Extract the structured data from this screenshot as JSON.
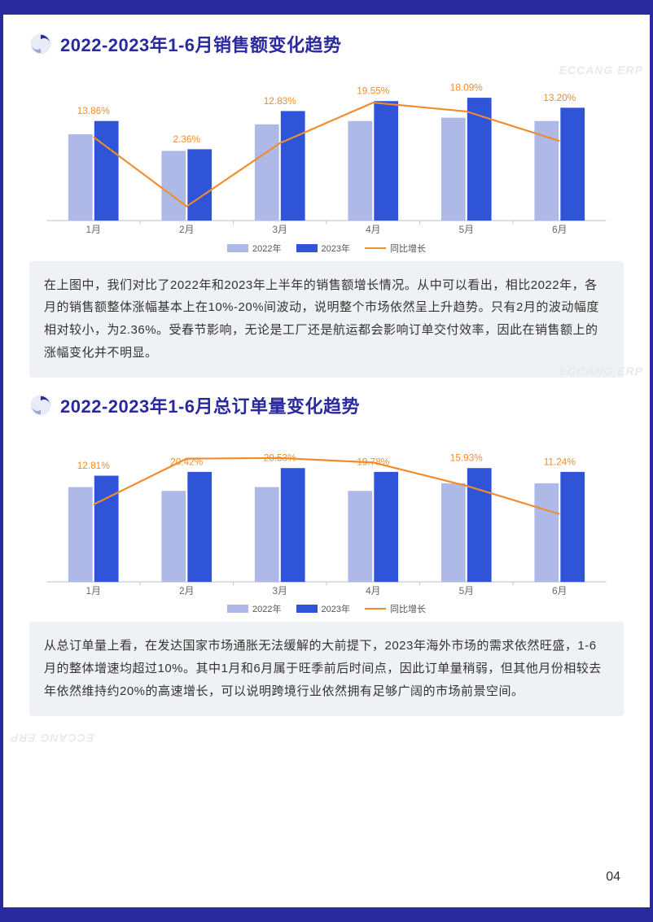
{
  "page_number": "04",
  "watermark_text": "ECCANG ERP",
  "sections": [
    {
      "id": "sales",
      "title": "2022-2023年1-6月销售额变化趋势",
      "caption": "在上图中，我们对比了2022年和2023年上半年的销售额增长情况。从中可以看出，相比2022年，各月的销售额整体涨幅基本上在10%-20%间波动，说明整个市场依然呈上升趋势。只有2月的波动幅度相对较小，为2.36%。受春节影响，无论是工厂还是航运都会影响订单交付效率，因此在销售额上的涨幅变化并不明显。",
      "chart": {
        "type": "bar+line",
        "categories": [
          "1月",
          "2月",
          "3月",
          "4月",
          "5月",
          "6月"
        ],
        "series": [
          {
            "name": "2022年",
            "color": "#aeb9e8",
            "values": [
              52,
              42,
              58,
              60,
              62,
              60
            ]
          },
          {
            "name": "2023年",
            "color": "#2f54d8",
            "values": [
              60,
              43,
              66,
              72,
              74,
              68
            ]
          }
        ],
        "line_series": {
          "name": "同比增长",
          "color": "#f08c2e",
          "labels": [
            "13.86%",
            "2.36%",
            "12.83%",
            "19.55%",
            "18.09%",
            "13.20%"
          ],
          "values": [
            13.86,
            2.36,
            12.83,
            19.55,
            18.09,
            13.2
          ]
        },
        "y_max": 80,
        "line_y_max": 22,
        "plot_background": "#ffffff",
        "grid_color": "#e6e8f2",
        "axis_color": "#c2c5d6",
        "label_fontsize": 11,
        "pct_label_fontsize": 11,
        "bar_group_gap": 0.42,
        "bar_width": 0.26
      }
    },
    {
      "id": "orders",
      "title": "2022-2023年1-6月总订单量变化趋势",
      "caption": "从总订单量上看，在发达国家市场通胀无法缓解的大前提下，2023年海外市场的需求依然旺盛，1-6月的整体增速均超过10%。其中1月和6月属于旺季前后时间点，因此订单量稍弱，但其他月份相较去年依然维持约20%的高速增长，可以说明跨境行业依然拥有足够广阔的市场前景空间。",
      "chart": {
        "type": "bar+line",
        "categories": [
          "1月",
          "2月",
          "3月",
          "4月",
          "5月",
          "6月"
        ],
        "series": [
          {
            "name": "2022年",
            "color": "#aeb9e8",
            "values": [
              50,
              48,
              50,
              48,
              52,
              52
            ]
          },
          {
            "name": "2023年",
            "color": "#2f54d8",
            "values": [
              56,
              58,
              60,
              58,
              60,
              58
            ]
          }
        ],
        "line_series": {
          "name": "同比增长",
          "color": "#f08c2e",
          "labels": [
            "12.81%",
            "20.42%",
            "20.53%",
            "19.78%",
            "15.93%",
            "11.24%"
          ],
          "values": [
            12.81,
            20.42,
            20.53,
            19.78,
            15.93,
            11.24
          ]
        },
        "y_max": 70,
        "line_y_max": 22,
        "plot_background": "#ffffff",
        "grid_color": "#e6e8f2",
        "axis_color": "#c2c5d6",
        "label_fontsize": 11,
        "pct_label_fontsize": 11,
        "bar_group_gap": 0.42,
        "bar_width": 0.26
      }
    }
  ],
  "legend_labels": {
    "y2022": "2022年",
    "y2023": "2023年",
    "line": "同比增长"
  },
  "colors": {
    "page_border": "#2a2a9e",
    "heading": "#2a2a9e",
    "caption_bg": "#f0f1f5",
    "text": "#333333"
  }
}
